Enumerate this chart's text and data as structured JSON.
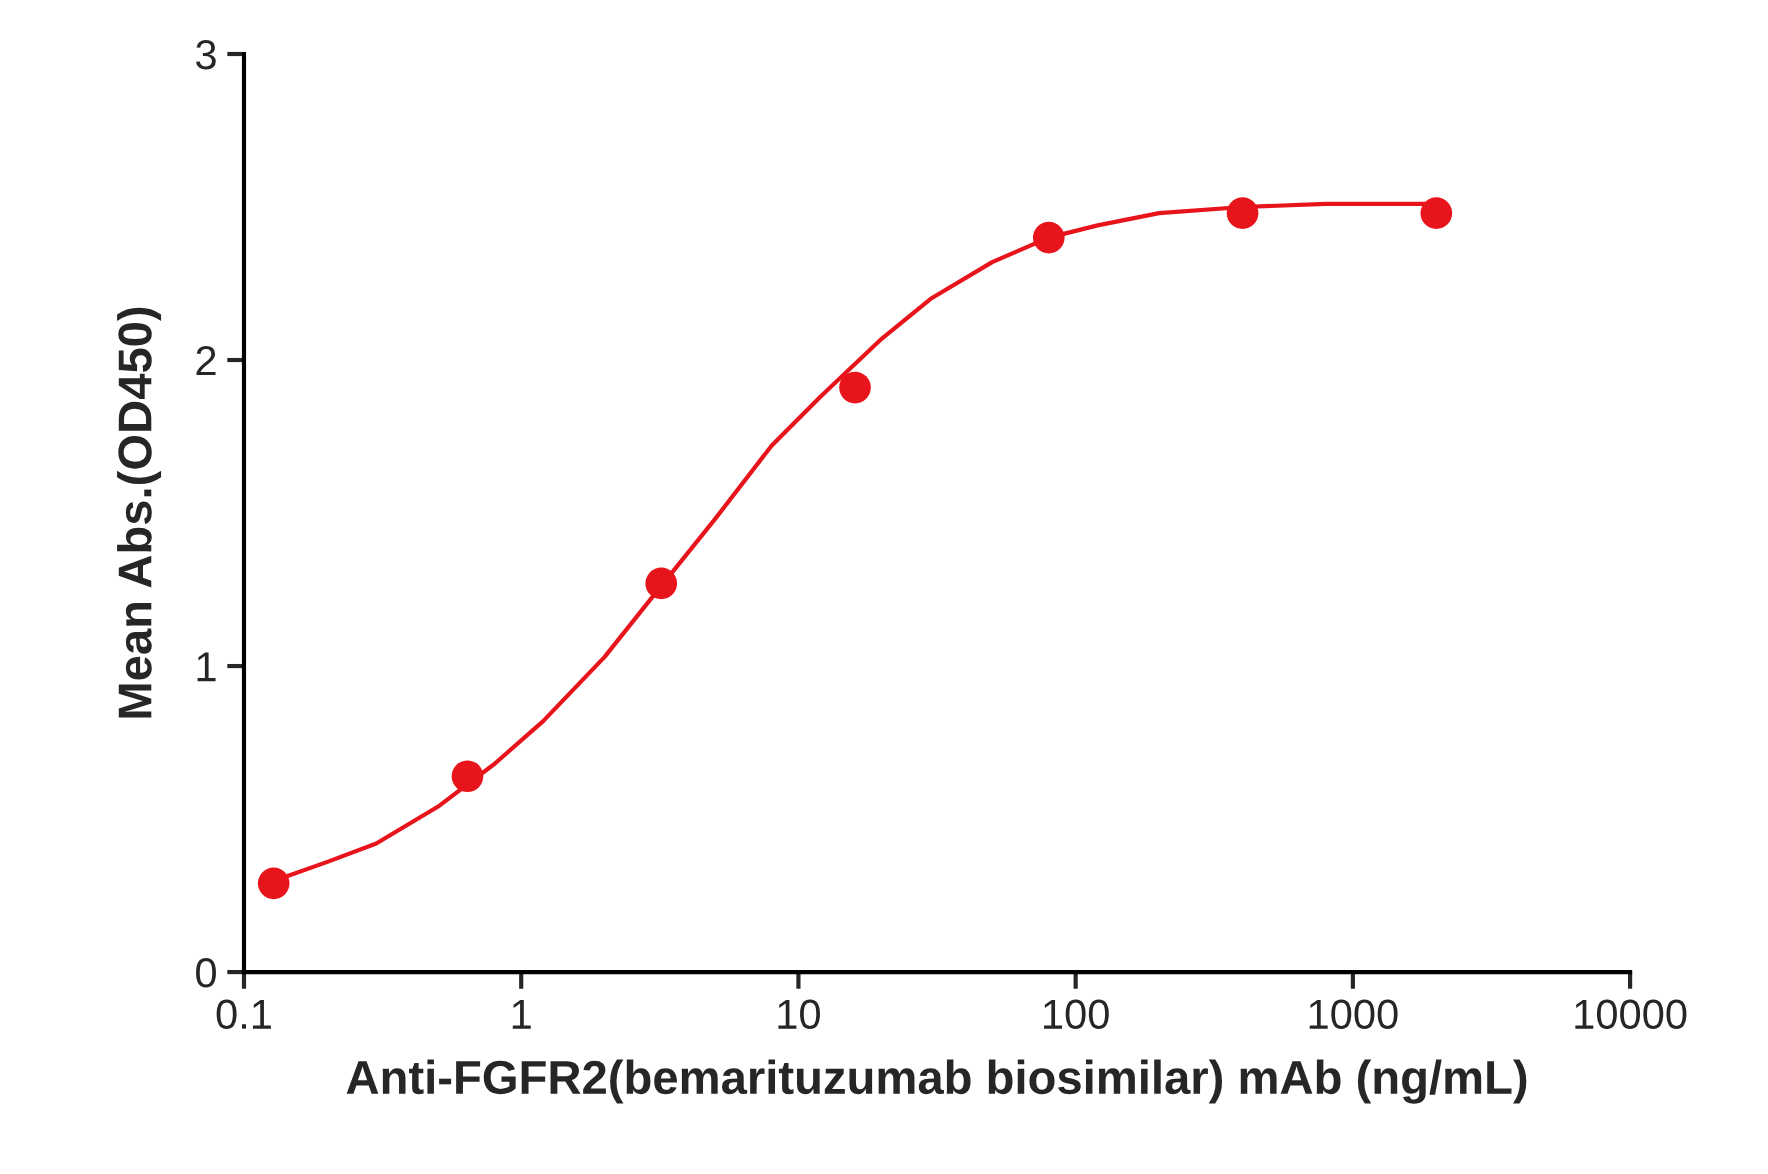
{
  "chart_data": {
    "type": "scatter",
    "xlabel": "Anti-FGFR2(bemarituzumab biosimilar) mAb (ng/mL)",
    "ylabel": "Mean Abs.(OD450)",
    "log": "x",
    "xlim": [
      0.1,
      10000
    ],
    "xticks": [
      0.1,
      1,
      10,
      100,
      1000,
      10000
    ],
    "ylim": [
      0,
      3
    ],
    "yticks": [
      0,
      1,
      2,
      3
    ],
    "grid": false,
    "legend": false,
    "series": [
      {
        "marker": "circle",
        "color": "#e8141b",
        "x": [
          0.128,
          0.64,
          3.2,
          16,
          80,
          400,
          2000
        ],
        "values": [
          0.29,
          0.64,
          1.27,
          1.91,
          2.4,
          2.48,
          2.48
        ]
      },
      {
        "type": "line",
        "marker": "none",
        "line_style": "solid",
        "color": "#e8141b",
        "x": [
          0.13,
          0.2,
          0.3,
          0.5,
          0.8,
          1.2,
          2,
          3,
          5,
          8,
          12,
          20,
          30,
          50,
          80,
          120,
          200,
          400,
          800,
          2000
        ],
        "values": [
          0.3,
          0.36,
          0.42,
          0.54,
          0.68,
          0.82,
          1.03,
          1.23,
          1.48,
          1.72,
          1.88,
          2.07,
          2.2,
          2.32,
          2.4,
          2.44,
          2.48,
          2.5,
          2.51,
          2.51
        ]
      }
    ]
  }
}
